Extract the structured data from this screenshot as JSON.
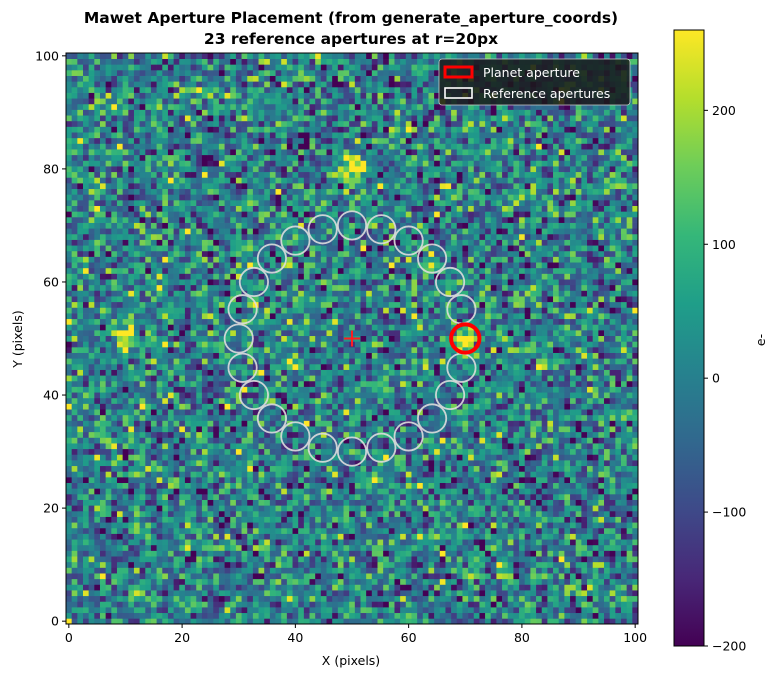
{
  "chart_data": {
    "type": "heatmap",
    "title_line1": "Mawet Aperture Placement (from generate_aperture_coords)",
    "title_line2": "23 reference apertures at r=20px",
    "xlabel": "X (pixels)",
    "ylabel": "Y (pixels)",
    "xlim": [
      -0.5,
      100.5
    ],
    "ylim": [
      -0.5,
      100.5
    ],
    "x_ticks": [
      0,
      20,
      40,
      60,
      80,
      100
    ],
    "y_ticks": [
      0,
      20,
      40,
      60,
      80,
      100
    ],
    "image": {
      "width": 101,
      "height": 101,
      "colormap": "viridis",
      "noise_sigma": 100,
      "sources": [
        {
          "x": 70,
          "y": 50,
          "peak": 300
        },
        {
          "x": 50,
          "y": 80,
          "peak": 300
        },
        {
          "x": 10,
          "y": 50,
          "peak": 260
        }
      ]
    },
    "colorbar": {
      "label": "e-",
      "vmin": -200,
      "vmax": 260,
      "ticks": [
        -200,
        -100,
        0,
        100,
        200
      ],
      "tick_labels": [
        "−200",
        "−100",
        "0",
        "100",
        "200"
      ]
    },
    "center": {
      "x": 50,
      "y": 50,
      "color": "#ff2020"
    },
    "planet_aperture": {
      "x": 70,
      "y": 50,
      "r": 2.5,
      "color": "#ff0000"
    },
    "reference_apertures": {
      "center_x": 50,
      "center_y": 50,
      "separation": 20,
      "count": 23,
      "r": 2.5,
      "color": "#dddddd"
    },
    "legend": {
      "position": "upper right",
      "entries": [
        {
          "label": "Planet aperture",
          "edge_color": "#ff0000"
        },
        {
          "label": "Reference apertures",
          "edge_color": "#ffffff"
        }
      ]
    }
  }
}
